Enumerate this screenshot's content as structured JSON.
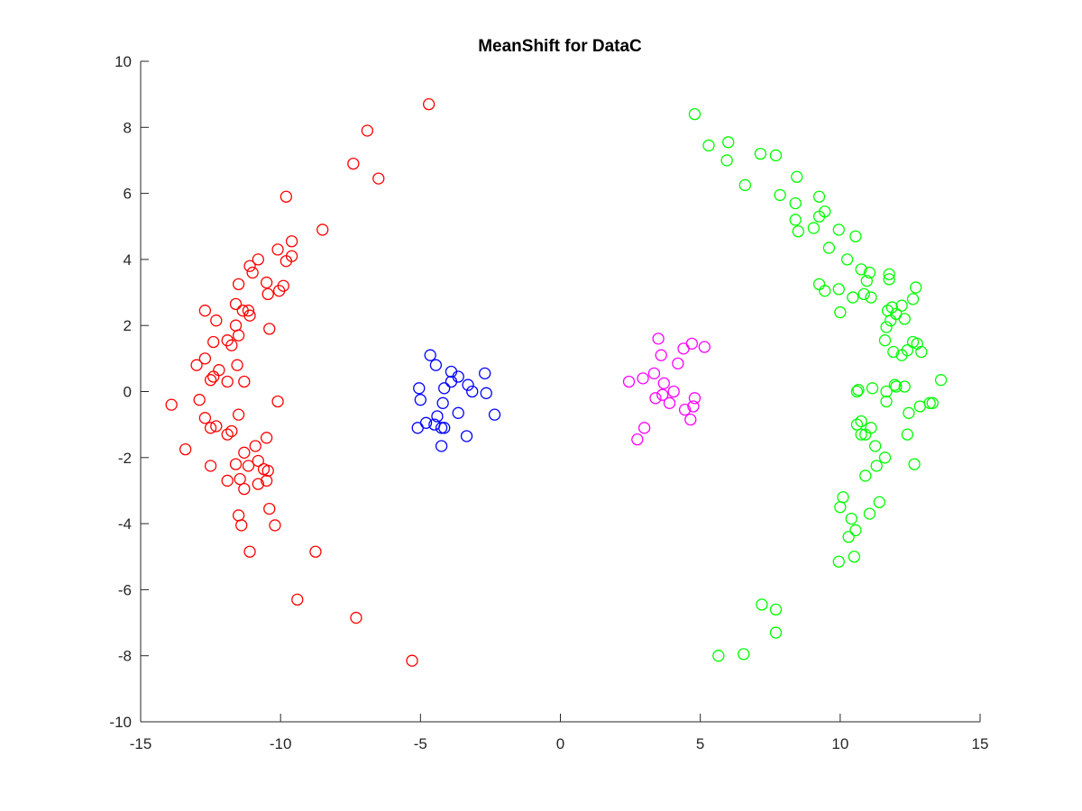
{
  "chart_data": {
    "type": "scatter",
    "title": "MeanShift for DataC",
    "xlabel": "",
    "ylabel": "",
    "xlim": [
      -15,
      15
    ],
    "ylim": [
      -10,
      10
    ],
    "xticks": [
      -15,
      -10,
      -5,
      0,
      5,
      10,
      15
    ],
    "yticks": [
      -10,
      -8,
      -6,
      -4,
      -2,
      0,
      2,
      4,
      6,
      8,
      10
    ],
    "grid": false,
    "marker": "open-circle",
    "series": [
      {
        "color": "#ff0000",
        "points": [
          [
            -4.7,
            8.7
          ],
          [
            -6.9,
            7.9
          ],
          [
            -7.4,
            6.9
          ],
          [
            -6.5,
            6.45
          ],
          [
            -9.8,
            5.9
          ],
          [
            -8.5,
            4.9
          ],
          [
            -9.6,
            4.55
          ],
          [
            -10.1,
            4.3
          ],
          [
            -9.6,
            4.1
          ],
          [
            -9.8,
            3.95
          ],
          [
            -10.8,
            4.0
          ],
          [
            -11.1,
            3.8
          ],
          [
            -11.0,
            3.6
          ],
          [
            -10.5,
            3.3
          ],
          [
            -9.9,
            3.2
          ],
          [
            -10.05,
            3.05
          ],
          [
            -10.45,
            2.95
          ],
          [
            -11.5,
            3.25
          ],
          [
            -12.7,
            2.45
          ],
          [
            -11.6,
            2.65
          ],
          [
            -11.35,
            2.45
          ],
          [
            -11.15,
            2.45
          ],
          [
            -11.1,
            2.3
          ],
          [
            -12.3,
            2.15
          ],
          [
            -11.6,
            2.0
          ],
          [
            -11.5,
            1.7
          ],
          [
            -10.4,
            1.9
          ],
          [
            -12.4,
            1.5
          ],
          [
            -11.9,
            1.55
          ],
          [
            -11.75,
            1.4
          ],
          [
            -12.7,
            1.0
          ],
          [
            -13.0,
            0.8
          ],
          [
            -11.55,
            0.8
          ],
          [
            -12.2,
            0.65
          ],
          [
            -12.4,
            0.45
          ],
          [
            -12.5,
            0.35
          ],
          [
            -11.9,
            0.3
          ],
          [
            -11.3,
            0.3
          ],
          [
            -13.9,
            -0.4
          ],
          [
            -12.9,
            -0.25
          ],
          [
            -10.1,
            -0.3
          ],
          [
            -11.5,
            -0.7
          ],
          [
            -12.7,
            -0.8
          ],
          [
            -12.3,
            -1.05
          ],
          [
            -12.5,
            -1.1
          ],
          [
            -11.9,
            -1.3
          ],
          [
            -11.75,
            -1.2
          ],
          [
            -13.4,
            -1.75
          ],
          [
            -10.9,
            -1.65
          ],
          [
            -10.5,
            -1.4
          ],
          [
            -11.3,
            -1.85
          ],
          [
            -11.6,
            -2.2
          ],
          [
            -11.15,
            -2.25
          ],
          [
            -10.8,
            -2.1
          ],
          [
            -12.5,
            -2.25
          ],
          [
            -10.6,
            -2.35
          ],
          [
            -10.45,
            -2.4
          ],
          [
            -11.9,
            -2.7
          ],
          [
            -11.45,
            -2.65
          ],
          [
            -10.8,
            -2.8
          ],
          [
            -10.5,
            -2.7
          ],
          [
            -11.3,
            -2.95
          ],
          [
            -10.4,
            -3.55
          ],
          [
            -11.5,
            -3.75
          ],
          [
            -11.4,
            -4.05
          ],
          [
            -10.2,
            -4.05
          ],
          [
            -11.1,
            -4.85
          ],
          [
            -8.75,
            -4.85
          ],
          [
            -9.4,
            -6.3
          ],
          [
            -7.3,
            -6.85
          ],
          [
            -5.3,
            -8.15
          ]
        ]
      },
      {
        "color": "#0000ff",
        "points": [
          [
            -4.65,
            1.1
          ],
          [
            -4.45,
            0.8
          ],
          [
            -3.9,
            0.6
          ],
          [
            -3.65,
            0.45
          ],
          [
            -2.7,
            0.55
          ],
          [
            -3.9,
            0.3
          ],
          [
            -3.3,
            0.2
          ],
          [
            -4.15,
            0.1
          ],
          [
            -5.05,
            0.1
          ],
          [
            -3.15,
            0.0
          ],
          [
            -2.65,
            -0.05
          ],
          [
            -5.0,
            -0.25
          ],
          [
            -4.2,
            -0.35
          ],
          [
            -4.4,
            -0.75
          ],
          [
            -3.65,
            -0.65
          ],
          [
            -2.35,
            -0.7
          ],
          [
            -4.8,
            -0.95
          ],
          [
            -4.5,
            -1.0
          ],
          [
            -4.25,
            -1.1
          ],
          [
            -4.15,
            -1.1
          ],
          [
            -5.1,
            -1.1
          ],
          [
            -3.35,
            -1.35
          ],
          [
            -4.25,
            -1.65
          ]
        ]
      },
      {
        "color": "#ff00ff",
        "points": [
          [
            3.5,
            1.6
          ],
          [
            4.7,
            1.45
          ],
          [
            5.15,
            1.35
          ],
          [
            4.4,
            1.3
          ],
          [
            3.6,
            1.1
          ],
          [
            4.2,
            0.85
          ],
          [
            3.35,
            0.55
          ],
          [
            2.95,
            0.4
          ],
          [
            2.45,
            0.3
          ],
          [
            3.7,
            0.25
          ],
          [
            4.05,
            0.0
          ],
          [
            3.4,
            -0.2
          ],
          [
            3.65,
            -0.1
          ],
          [
            3.9,
            -0.35
          ],
          [
            4.8,
            -0.2
          ],
          [
            4.75,
            -0.45
          ],
          [
            4.45,
            -0.55
          ],
          [
            4.65,
            -0.85
          ],
          [
            3.0,
            -1.1
          ],
          [
            2.75,
            -1.45
          ]
        ]
      },
      {
        "color": "#00ff00",
        "points": [
          [
            4.8,
            8.4
          ],
          [
            6.0,
            7.55
          ],
          [
            5.3,
            7.45
          ],
          [
            7.15,
            7.2
          ],
          [
            7.7,
            7.15
          ],
          [
            5.95,
            7.0
          ],
          [
            8.45,
            6.5
          ],
          [
            6.6,
            6.25
          ],
          [
            7.85,
            5.95
          ],
          [
            9.25,
            5.9
          ],
          [
            8.4,
            5.7
          ],
          [
            9.45,
            5.45
          ],
          [
            9.25,
            5.3
          ],
          [
            8.4,
            5.2
          ],
          [
            9.05,
            4.95
          ],
          [
            9.95,
            4.9
          ],
          [
            8.5,
            4.85
          ],
          [
            10.55,
            4.7
          ],
          [
            9.6,
            4.35
          ],
          [
            10.25,
            4.0
          ],
          [
            10.75,
            3.7
          ],
          [
            11.05,
            3.6
          ],
          [
            11.75,
            3.55
          ],
          [
            11.75,
            3.4
          ],
          [
            10.95,
            3.35
          ],
          [
            9.25,
            3.25
          ],
          [
            9.45,
            3.05
          ],
          [
            9.95,
            3.1
          ],
          [
            12.7,
            3.15
          ],
          [
            10.45,
            2.85
          ],
          [
            10.85,
            2.95
          ],
          [
            11.1,
            2.85
          ],
          [
            12.6,
            2.8
          ],
          [
            12.2,
            2.6
          ],
          [
            11.85,
            2.55
          ],
          [
            11.7,
            2.45
          ],
          [
            10.0,
            2.4
          ],
          [
            12.0,
            2.35
          ],
          [
            12.3,
            2.2
          ],
          [
            11.8,
            2.15
          ],
          [
            11.65,
            1.95
          ],
          [
            12.75,
            1.45
          ],
          [
            11.6,
            1.55
          ],
          [
            12.6,
            1.5
          ],
          [
            12.4,
            1.25
          ],
          [
            11.9,
            1.2
          ],
          [
            12.9,
            1.2
          ],
          [
            12.2,
            1.1
          ],
          [
            13.6,
            0.35
          ],
          [
            11.95,
            0.2
          ],
          [
            12.0,
            0.15
          ],
          [
            12.3,
            0.15
          ],
          [
            11.15,
            0.1
          ],
          [
            10.65,
            0.05
          ],
          [
            10.6,
            0.0
          ],
          [
            11.65,
            0.0
          ],
          [
            11.65,
            -0.3
          ],
          [
            13.2,
            -0.35
          ],
          [
            13.3,
            -0.35
          ],
          [
            12.85,
            -0.45
          ],
          [
            12.45,
            -0.65
          ],
          [
            10.75,
            -0.9
          ],
          [
            10.6,
            -1.0
          ],
          [
            11.1,
            -1.1
          ],
          [
            10.75,
            -1.3
          ],
          [
            10.9,
            -1.3
          ],
          [
            12.4,
            -1.3
          ],
          [
            11.25,
            -1.65
          ],
          [
            11.6,
            -2.0
          ],
          [
            12.65,
            -2.2
          ],
          [
            11.3,
            -2.25
          ],
          [
            10.9,
            -2.55
          ],
          [
            10.1,
            -3.2
          ],
          [
            11.4,
            -3.35
          ],
          [
            10.0,
            -3.5
          ],
          [
            11.05,
            -3.7
          ],
          [
            10.4,
            -3.85
          ],
          [
            10.55,
            -4.2
          ],
          [
            10.3,
            -4.4
          ],
          [
            9.95,
            -5.15
          ],
          [
            10.5,
            -5.0
          ],
          [
            7.2,
            -6.45
          ],
          [
            7.7,
            -6.6
          ],
          [
            7.7,
            -7.3
          ],
          [
            5.65,
            -8.0
          ],
          [
            6.55,
            -7.95
          ]
        ]
      }
    ]
  }
}
